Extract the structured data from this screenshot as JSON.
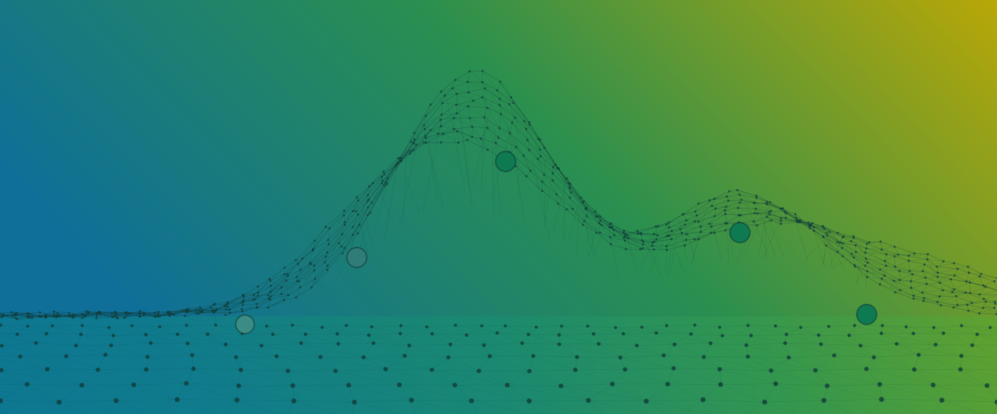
{
  "scene": {
    "description_visible_text": "",
    "gradient": {
      "left": "#0f6f98",
      "middle": "#2a8f4f",
      "right": "#b4a80a",
      "floor_left": "#0c7f8a",
      "floor_right": "#4ea535"
    },
    "mesh_color": "#0f3d3a",
    "markers": [
      {
        "name": "marker-1",
        "fill": "#0e7a52"
      },
      {
        "name": "marker-2",
        "fill": "#2f7c78"
      },
      {
        "name": "marker-3",
        "fill": "#0e7a52"
      },
      {
        "name": "marker-4",
        "fill": "#0e7a52"
      },
      {
        "name": "marker-5",
        "fill": "#3c8c86"
      }
    ]
  }
}
